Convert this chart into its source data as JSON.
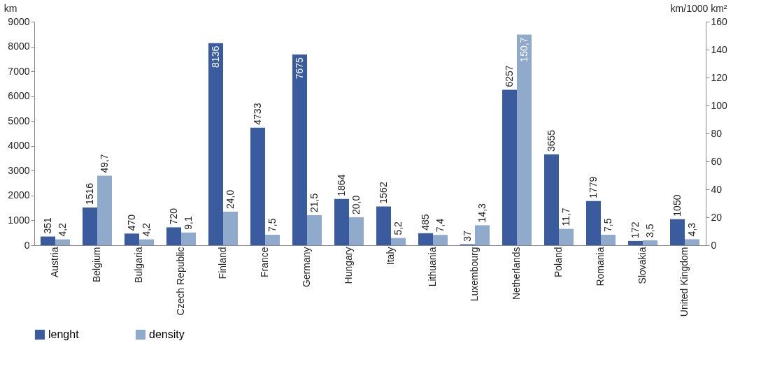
{
  "chart_data": {
    "type": "bar",
    "ylabel": "km",
    "y2label": "km/1000 km²",
    "categories": [
      "Austria",
      "Belgium",
      "Bulgaria",
      "Czech Republic",
      "Finland",
      "France",
      "Germany",
      "Hungary",
      "Italy",
      "Lithuania",
      "Luxembourg",
      "Netherlands",
      "Poland",
      "Romania",
      "Slovakia",
      "United Kingdom"
    ],
    "series": [
      {
        "name": "lenght",
        "color": "#3a5c9e",
        "values": [
          351,
          1516,
          470,
          720,
          8136,
          4733,
          7675,
          1864,
          1562,
          485,
          37,
          6257,
          3655,
          1779,
          172,
          1050
        ],
        "value_labels": [
          "351",
          "1516",
          "470",
          "720",
          "8136",
          "4733",
          "7675",
          "1864",
          "1562",
          "485",
          "37",
          "6257",
          "3655",
          "1779",
          "172",
          "1050"
        ]
      },
      {
        "name": "density",
        "color": "#8faacb",
        "axis": "y2",
        "values": [
          4.2,
          49.7,
          4.2,
          9.1,
          24.0,
          7.5,
          21.5,
          20.0,
          5.2,
          7.4,
          14.3,
          150.7,
          11.7,
          7.5,
          3.5,
          4.3
        ],
        "value_labels": [
          "4,2",
          "49,7",
          "4,2",
          "9,1",
          "24,0",
          "7,5",
          "21,5",
          "20,0",
          "5,2",
          "7,4",
          "14,3",
          "150,7",
          "11,7",
          "7,5",
          "3,5",
          "4,3"
        ]
      }
    ],
    "ylim": [
      0,
      9000
    ],
    "yticks": [
      0,
      1000,
      2000,
      3000,
      4000,
      5000,
      6000,
      7000,
      8000,
      9000
    ],
    "y2lim": [
      0,
      160
    ],
    "y2ticks": [
      0,
      20,
      40,
      60,
      80,
      100,
      120,
      140,
      160
    ],
    "legend": "bottom",
    "grid": false
  }
}
